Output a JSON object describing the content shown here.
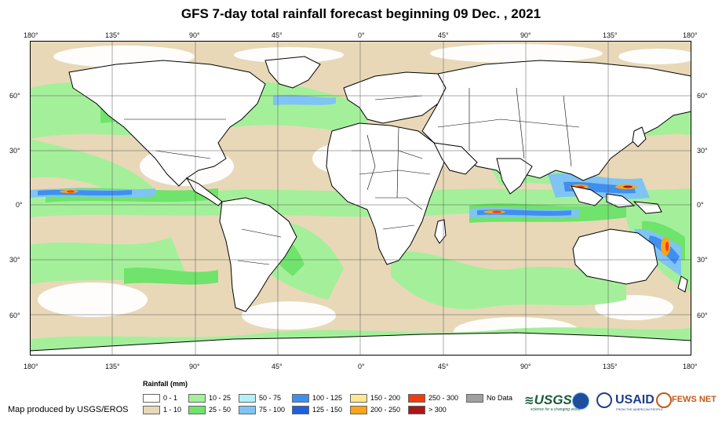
{
  "title": "GFS 7-day total rainfall forecast beginning 09 Dec. , 2021",
  "lon_ticks": [
    "180°",
    "135°",
    "90°",
    "45°",
    "0°",
    "45°",
    "90°",
    "135°",
    "180°"
  ],
  "lat_ticks": [
    "60°",
    "30°",
    "0°",
    "30°",
    "60°"
  ],
  "legend": {
    "title": "Rainfall (mm)",
    "items": [
      {
        "label": "0 - 1",
        "color": "#ffffff"
      },
      {
        "label": "1 - 10",
        "color": "#e8d8b8"
      },
      {
        "label": "10 - 25",
        "color": "#a4f09a"
      },
      {
        "label": "25 - 50",
        "color": "#6fe36b"
      },
      {
        "label": "50 - 75",
        "color": "#b4f0f8"
      },
      {
        "label": "75 - 100",
        "color": "#80c4f4"
      },
      {
        "label": "100 - 125",
        "color": "#3f8ff0"
      },
      {
        "label": "125 - 150",
        "color": "#1e5fe0"
      },
      {
        "label": "150 - 200",
        "color": "#ffe890"
      },
      {
        "label": "200 - 250",
        "color": "#ffa319"
      },
      {
        "label": "250 - 300",
        "color": "#f23c10"
      },
      {
        "label": "> 300",
        "color": "#a81818"
      },
      {
        "label": "No Data",
        "color": "#a0a0a0"
      }
    ]
  },
  "credit": "Map produced by USGS/EROS",
  "logos": {
    "usgs": "USGS",
    "usgs_tag": "science for a changing world",
    "usaid": "USAID",
    "usaid_tag": "FROM THE AMERICAN PEOPLE",
    "fews": "FEWS NET"
  },
  "map_colors": {
    "ocean_dry": "#e8d8b8",
    "light_rain": "#a4f09a",
    "moderate_rain": "#6fe36b",
    "heavy_rain": "#80c4f4",
    "very_heavy": "#3f8ff0",
    "extreme": "#f23c10",
    "land_dry": "#ffffff",
    "border": "#000000"
  }
}
